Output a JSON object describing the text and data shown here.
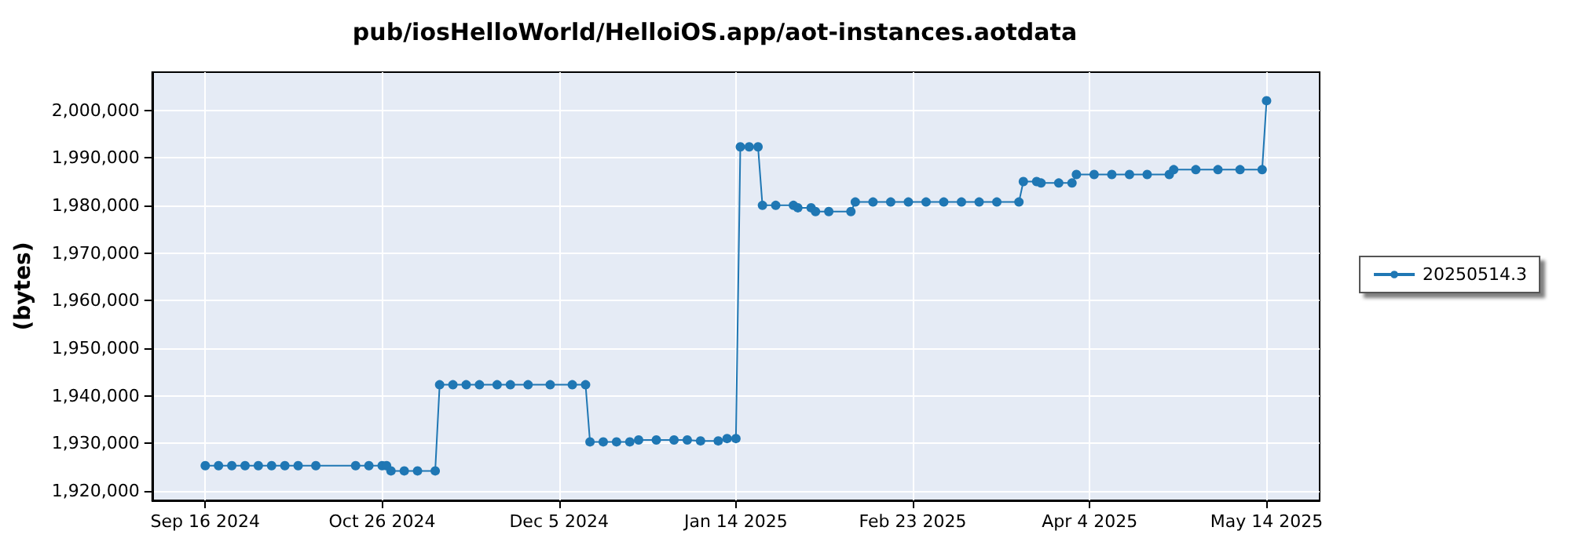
{
  "chart_data": {
    "type": "line",
    "title": "pub/iosHelloWorld/HelloiOS.app/aot-instances.aotdata",
    "ylabel": "(bytes)",
    "x": [
      "2024-09-16",
      "2024-09-19",
      "2024-09-22",
      "2024-09-25",
      "2024-09-28",
      "2024-10-01",
      "2024-10-04",
      "2024-10-07",
      "2024-10-11",
      "2024-10-20",
      "2024-10-23",
      "2024-10-26",
      "2024-10-27",
      "2024-10-28",
      "2024-10-31",
      "2024-11-03",
      "2024-11-07",
      "2024-11-08",
      "2024-11-11",
      "2024-11-14",
      "2024-11-17",
      "2024-11-21",
      "2024-11-24",
      "2024-11-28",
      "2024-12-03",
      "2024-12-08",
      "2024-12-11",
      "2024-12-12",
      "2024-12-15",
      "2024-12-18",
      "2024-12-21",
      "2024-12-23",
      "2024-12-27",
      "2024-12-31",
      "2025-01-03",
      "2025-01-06",
      "2025-01-10",
      "2025-01-12",
      "2025-01-14",
      "2025-01-15",
      "2025-01-17",
      "2025-01-19",
      "2025-01-20",
      "2025-01-23",
      "2025-01-27",
      "2025-01-28",
      "2025-01-31",
      "2025-02-01",
      "2025-02-04",
      "2025-02-09",
      "2025-02-10",
      "2025-02-14",
      "2025-02-18",
      "2025-02-22",
      "2025-02-26",
      "2025-03-02",
      "2025-03-06",
      "2025-03-10",
      "2025-03-14",
      "2025-03-19",
      "2025-03-20",
      "2025-03-23",
      "2025-03-24",
      "2025-03-28",
      "2025-03-31",
      "2025-04-01",
      "2025-04-05",
      "2025-04-09",
      "2025-04-13",
      "2025-04-17",
      "2025-04-22",
      "2025-04-23",
      "2025-04-28",
      "2025-05-03",
      "2025-05-08",
      "2025-05-13",
      "2025-05-14"
    ],
    "series": [
      {
        "name": "20250514.3",
        "color": "#1f77b4",
        "values": [
          1925300,
          1925300,
          1925300,
          1925300,
          1925300,
          1925300,
          1925300,
          1925300,
          1925300,
          1925300,
          1925300,
          1925300,
          1925300,
          1924200,
          1924200,
          1924200,
          1924200,
          1942300,
          1942300,
          1942300,
          1942300,
          1942300,
          1942300,
          1942300,
          1942300,
          1942300,
          1942300,
          1930300,
          1930300,
          1930300,
          1930300,
          1930700,
          1930700,
          1930700,
          1930700,
          1930500,
          1930500,
          1931000,
          1931000,
          1992300,
          1992300,
          1992300,
          1980000,
          1980000,
          1980000,
          1979500,
          1979500,
          1978700,
          1978700,
          1978700,
          1980700,
          1980700,
          1980700,
          1980700,
          1980700,
          1980700,
          1980700,
          1980700,
          1980700,
          1980700,
          1985000,
          1985000,
          1984700,
          1984700,
          1984700,
          1986500,
          1986500,
          1986500,
          1986500,
          1986500,
          1986500,
          1987500,
          1987500,
          1987500,
          1987500,
          1987500,
          2002000
        ]
      }
    ],
    "xlim": [
      "2024-09-04",
      "2025-05-26"
    ],
    "xticks": [
      {
        "value": "2024-09-16",
        "label": "Sep 16 2024"
      },
      {
        "value": "2024-10-26",
        "label": "Oct 26 2024"
      },
      {
        "value": "2024-12-05",
        "label": "Dec 5 2024"
      },
      {
        "value": "2025-01-14",
        "label": "Jan 14 2025"
      },
      {
        "value": "2025-02-23",
        "label": "Feb 23 2025"
      },
      {
        "value": "2025-04-04",
        "label": "Apr 4 2025"
      },
      {
        "value": "2025-05-14",
        "label": "May 14 2025"
      }
    ],
    "ylim": [
      1918000,
      2008000
    ],
    "yticks": [
      {
        "value": 1920000,
        "label": "1,920,000"
      },
      {
        "value": 1930000,
        "label": "1,930,000"
      },
      {
        "value": 1940000,
        "label": "1,940,000"
      },
      {
        "value": 1950000,
        "label": "1,950,000"
      },
      {
        "value": 1960000,
        "label": "1,960,000"
      },
      {
        "value": 1970000,
        "label": "1,970,000"
      },
      {
        "value": 1980000,
        "label": "1,980,000"
      },
      {
        "value": 1990000,
        "label": "1,990,000"
      },
      {
        "value": 2000000,
        "label": "2,000,000"
      }
    ],
    "grid": true,
    "legend": "right",
    "marker": "circle",
    "line_style": "solid"
  }
}
